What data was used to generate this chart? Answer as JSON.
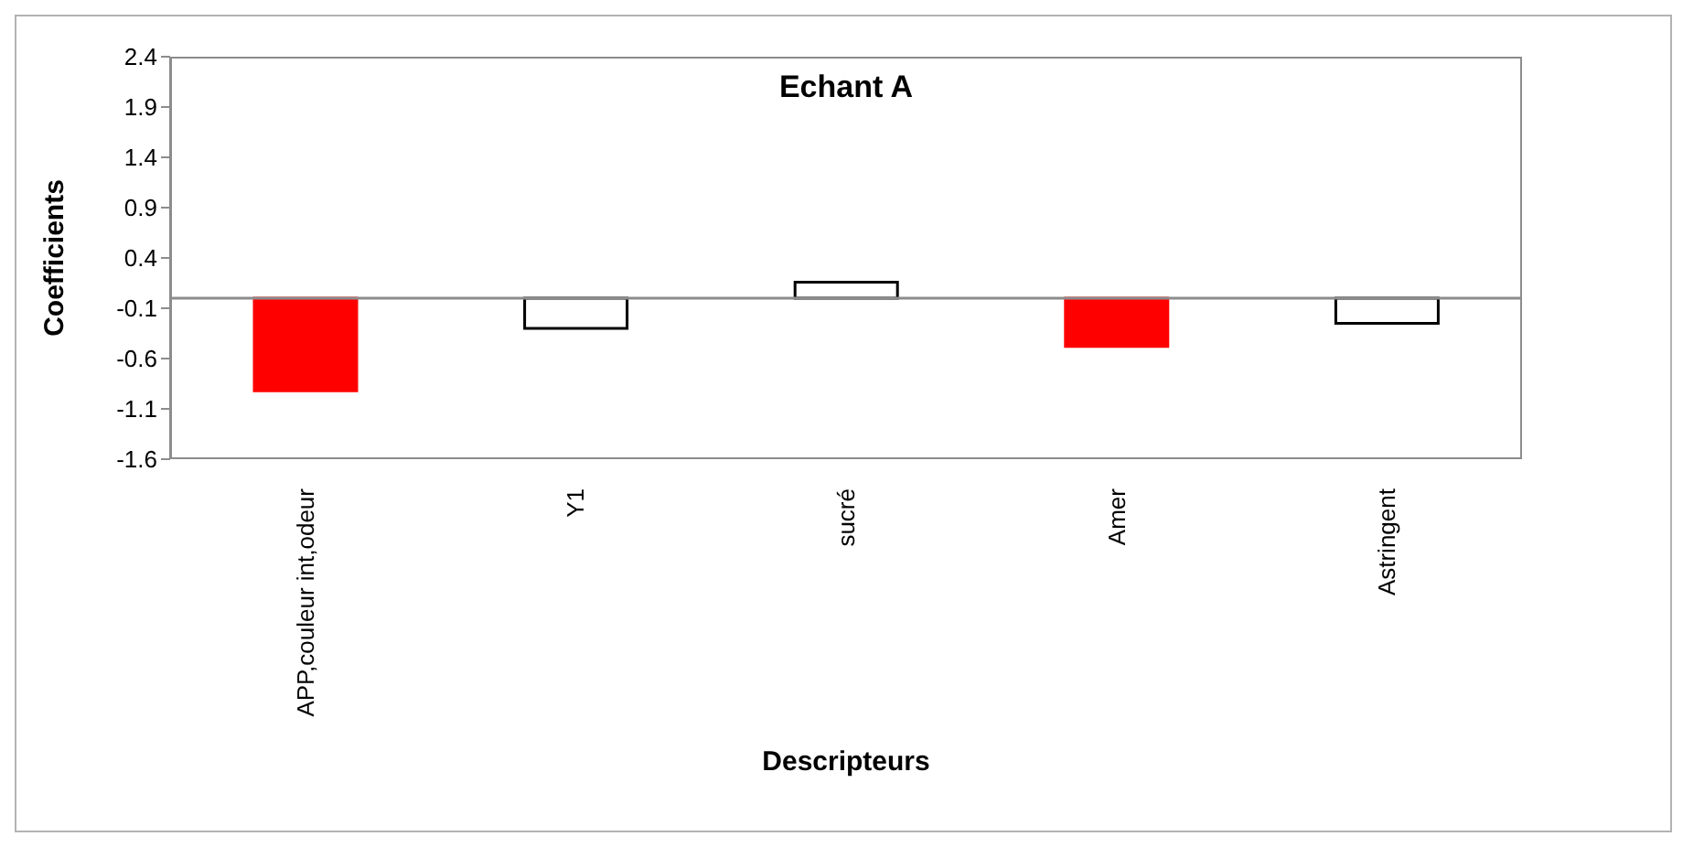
{
  "chart_data": {
    "type": "bar",
    "title": "Echant A",
    "xlabel": "Descripteurs",
    "ylabel": "Coefficients",
    "categories": [
      "APP,couleur int,odeur",
      "Y1",
      "sucré",
      "Amer",
      "Astringent"
    ],
    "values": [
      -0.92,
      -0.3,
      0.16,
      -0.48,
      -0.25
    ],
    "colors": [
      "#ff0000",
      "#ffffff",
      "#ffffff",
      "#ff0000",
      "#ffffff"
    ],
    "ylim": [
      -1.6,
      2.4
    ],
    "yticks": [
      {
        "value": -1.6,
        "label": "-1.6"
      },
      {
        "value": -1.1,
        "label": "-1.1"
      },
      {
        "value": -0.6,
        "label": "-0.6"
      },
      {
        "value": -0.1,
        "label": "-0.1"
      },
      {
        "value": 0.4,
        "label": "0.4"
      },
      {
        "value": 0.9,
        "label": "0.9"
      },
      {
        "value": 1.4,
        "label": "1.4"
      },
      {
        "value": 1.9,
        "label": "1.9"
      },
      {
        "value": 2.4,
        "label": "2.4"
      }
    ],
    "grid": false,
    "legend": false
  }
}
